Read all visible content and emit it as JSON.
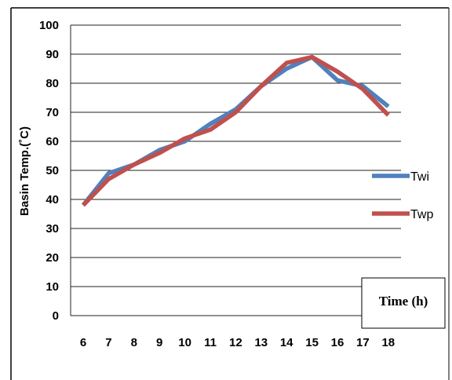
{
  "chart_data": {
    "type": "line",
    "ylabel": "Basin Temp.(˚C)",
    "xlabel": "Time (h)",
    "x": [
      6,
      7,
      8,
      9,
      10,
      11,
      12,
      13,
      14,
      15,
      16,
      17,
      18
    ],
    "ylim": [
      0,
      100
    ],
    "yticks": [
      0,
      10,
      20,
      30,
      40,
      50,
      60,
      70,
      80,
      90,
      100
    ],
    "grid": true,
    "legend_position": "right",
    "series": [
      {
        "name": "Twi",
        "color": "#4f81bd",
        "values": [
          38,
          49,
          52,
          57,
          60,
          66,
          71,
          79,
          85,
          89,
          81,
          79,
          72
        ]
      },
      {
        "name": "Twp",
        "color": "#c0504d",
        "values": [
          38,
          47,
          52,
          56,
          61,
          64,
          70,
          79,
          87,
          89,
          84,
          78,
          69
        ]
      }
    ]
  }
}
